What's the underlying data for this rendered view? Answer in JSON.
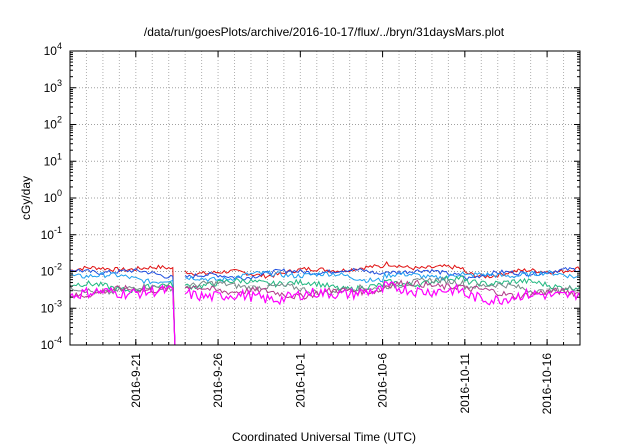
{
  "chart_data": {
    "type": "line",
    "title": "/data/run/goesPlots/archive/2016-10-17/flux/../bryn/31daysMars.plot",
    "xlabel": "Coordinated Universal Time (UTC)",
    "ylabel": "cGy/day",
    "yscale": "log",
    "ylim": [
      "1e-4",
      "1e4"
    ],
    "xlim": [
      "2016-09-17",
      "2016-10-18"
    ],
    "grid": true,
    "x_ticks": [
      "2016-9-21",
      "2016-9-26",
      "2016-10-1",
      "2016-10-6",
      "2016-10-11",
      "2016-10-16"
    ],
    "y_ticks": [
      {
        "base": "10",
        "exp": "-4"
      },
      {
        "base": "10",
        "exp": "-3"
      },
      {
        "base": "10",
        "exp": "-2"
      },
      {
        "base": "10",
        "exp": "-1"
      },
      {
        "base": "10",
        "exp": "0"
      },
      {
        "base": "10",
        "exp": "1"
      },
      {
        "base": "10",
        "exp": "2"
      },
      {
        "base": "10",
        "exp": "3"
      },
      {
        "base": "10",
        "exp": "4"
      }
    ],
    "gap": {
      "start": "2016-09-23T06:00",
      "end": "2016-09-24T00:00"
    },
    "series": [
      {
        "color": "#e01010",
        "level": 0.0105,
        "noise": 0.12
      },
      {
        "color": "#1f4fe0",
        "level": 0.0088,
        "noise": 0.12
      },
      {
        "color": "#1fa0f0",
        "level": 0.0072,
        "noise": 0.14
      },
      {
        "color": "#1fb77f",
        "level": 0.0044,
        "noise": 0.16
      },
      {
        "color": "#7a8a8a",
        "level": 0.0037,
        "noise": 0.16
      },
      {
        "color": "#b23c8a",
        "level": 0.003,
        "noise": 0.18
      },
      {
        "color": "#ff00ff",
        "level": 0.0024,
        "noise": 0.3
      }
    ]
  }
}
